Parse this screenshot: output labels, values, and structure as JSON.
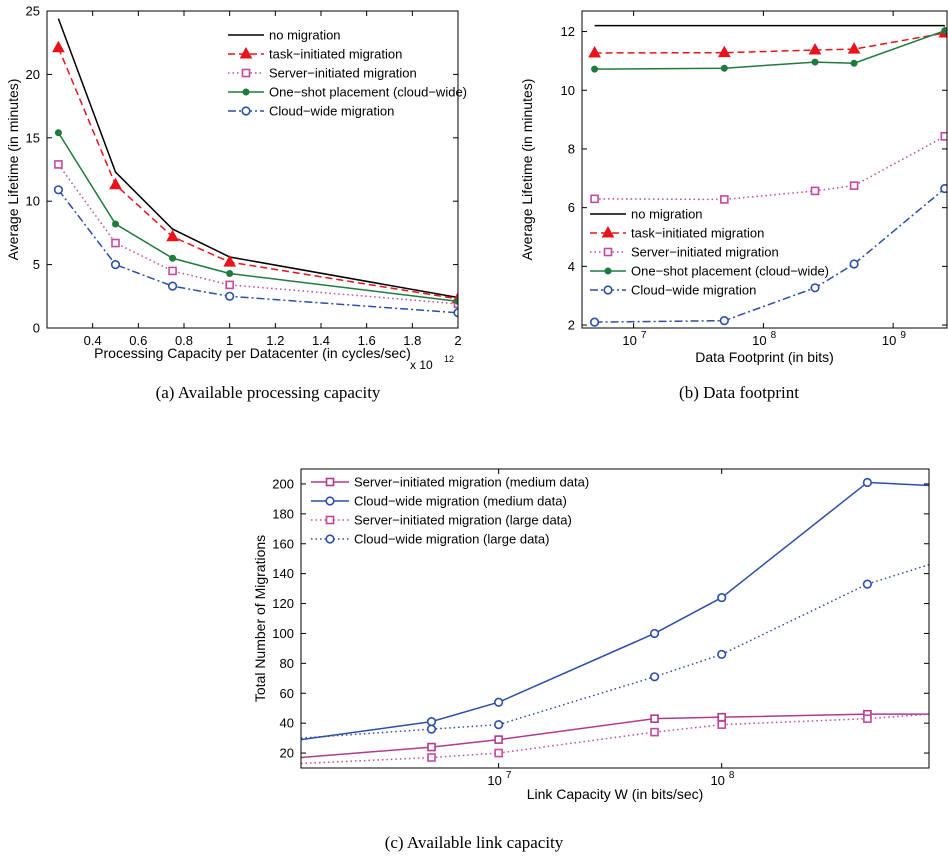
{
  "chart_data": [
    {
      "id": "a",
      "type": "line",
      "caption": "(a)  Available processing capacity",
      "xlabel": "Processing Capacity per Datacenter (in cycles/sec)",
      "ylabel": "Average Lifetime (in minutes)",
      "x_multiplier_label": "x 10",
      "x_multiplier_exp": "12",
      "xscale": "linear",
      "xlim": [
        0.2,
        2.0
      ],
      "ylim": [
        0,
        25
      ],
      "xticks": [
        0.4,
        0.6,
        0.8,
        1,
        1.2,
        1.4,
        1.6,
        1.8,
        2
      ],
      "xtick_labels": [
        "0.4",
        "0.6",
        "0.8",
        "1",
        "1.2",
        "1.4",
        "1.6",
        "1.8",
        "2"
      ],
      "yticks": [
        0,
        5,
        10,
        15,
        20,
        25
      ],
      "ytick_labels": [
        "0",
        "5",
        "10",
        "15",
        "20",
        "25"
      ],
      "legend_position": "top-right",
      "series": [
        {
          "name": "no migration",
          "color": "#000000",
          "dash": "",
          "marker": "none",
          "x": [
            0.25,
            0.5,
            0.75,
            1.0,
            2.0
          ],
          "y": [
            24.4,
            12.3,
            7.8,
            5.6,
            2.4
          ]
        },
        {
          "name": "task−initiated migration",
          "color": "#e8141c",
          "dash": "7,4",
          "marker": "triangle",
          "x": [
            0.25,
            0.5,
            0.75,
            1.0,
            2.0
          ],
          "y": [
            22.1,
            11.3,
            7.2,
            5.2,
            2.3
          ]
        },
        {
          "name": "Server−initiated migration",
          "color": "#c5489f",
          "dash": "1.5,3",
          "marker": "square",
          "x": [
            0.25,
            0.5,
            0.75,
            1.0,
            2.0
          ],
          "y": [
            12.9,
            6.7,
            4.5,
            3.4,
            1.9
          ]
        },
        {
          "name": "One−shot placement (cloud−wide)",
          "color": "#1e7b3c",
          "dash": "",
          "marker": "dot",
          "x": [
            0.25,
            0.5,
            0.75,
            1.0,
            2.0
          ],
          "y": [
            15.4,
            8.2,
            5.5,
            4.3,
            2.1
          ]
        },
        {
          "name": "Cloud−wide migration",
          "color": "#2b4ea8",
          "dash": "8,3,2,3",
          "marker": "circle",
          "x": [
            0.25,
            0.5,
            0.75,
            1.0,
            2.0
          ],
          "y": [
            10.9,
            5.0,
            3.3,
            2.5,
            1.2
          ]
        }
      ]
    },
    {
      "id": "b",
      "type": "line",
      "caption": "(b)  Data footprint",
      "xlabel": "Data Footprint (in bits)",
      "ylabel": "Average Lifetime (in minutes)",
      "xscale": "log",
      "xlim": [
        4000000,
        2600000000
      ],
      "ylim": [
        1.9,
        12.7
      ],
      "xticks": [
        10000000,
        100000000,
        1000000000
      ],
      "xtick_labels": [
        "10",
        "10",
        "10"
      ],
      "xtick_exps": [
        "7",
        "8",
        "9"
      ],
      "yticks": [
        2,
        4,
        6,
        8,
        10,
        12
      ],
      "ytick_labels": [
        "2",
        "4",
        "6",
        "8",
        "10",
        "12"
      ],
      "legend_position": "lower-left",
      "series": [
        {
          "name": "no migration",
          "color": "#000000",
          "dash": "",
          "marker": "none",
          "x": [
            5000000,
            50000000,
            250000000,
            500000000,
            2500000000
          ],
          "y": [
            12.2,
            12.2,
            12.2,
            12.2,
            12.2
          ]
        },
        {
          "name": "task−initiated migration",
          "color": "#e8141c",
          "dash": "7,4",
          "marker": "triangle",
          "x": [
            5000000,
            50000000,
            250000000,
            500000000,
            2500000000
          ],
          "y": [
            11.27,
            11.28,
            11.37,
            11.4,
            11.95
          ]
        },
        {
          "name": "Server−initiated migration",
          "color": "#c5489f",
          "dash": "1.5,3",
          "marker": "square",
          "x": [
            5000000,
            50000000,
            250000000,
            500000000,
            2500000000
          ],
          "y": [
            6.3,
            6.28,
            6.57,
            6.75,
            8.43
          ]
        },
        {
          "name": "One−shot placement (cloud−wide)",
          "color": "#1e7b3c",
          "dash": "",
          "marker": "dot",
          "x": [
            5000000,
            50000000,
            250000000,
            500000000,
            2500000000
          ],
          "y": [
            10.72,
            10.75,
            10.96,
            10.92,
            12.03
          ]
        },
        {
          "name": "Cloud−wide migration",
          "color": "#2b4ea8",
          "dash": "8,3,2,3",
          "marker": "circle",
          "x": [
            5000000,
            50000000,
            250000000,
            500000000,
            2500000000
          ],
          "y": [
            2.1,
            2.15,
            3.27,
            4.08,
            6.65
          ]
        }
      ]
    },
    {
      "id": "c",
      "type": "line",
      "caption": "(c)  Available link capacity",
      "xlabel": "Link Capacity W (in bits/sec)",
      "ylabel": "Total Number of Migrations",
      "xscale": "log",
      "xlim": [
        1300000,
        850000000
      ],
      "ylim": [
        10,
        210
      ],
      "xticks": [
        10000000,
        100000000
      ],
      "xtick_labels": [
        "10",
        "10"
      ],
      "xtick_exps": [
        "7",
        "8"
      ],
      "yticks": [
        20,
        40,
        60,
        80,
        100,
        120,
        140,
        160,
        180,
        200
      ],
      "ytick_labels": [
        "20",
        "40",
        "60",
        "80",
        "100",
        "120",
        "140",
        "160",
        "180",
        "200"
      ],
      "legend_position": "top-left",
      "series": [
        {
          "name": "Server−initiated migration (medium data)",
          "color": "#b03a8d",
          "dash": "",
          "marker": "square",
          "x": [
            1300000,
            5000000,
            10000000,
            50000000,
            100000000,
            450000000,
            850000000
          ],
          "y": [
            17,
            24,
            29,
            43,
            44,
            46,
            46
          ],
          "markers": [
            false,
            true,
            true,
            true,
            true,
            true,
            false
          ]
        },
        {
          "name": "Cloud−wide migration (medium data)",
          "color": "#2b4ea8",
          "dash": "",
          "marker": "circle",
          "x": [
            1300000,
            5000000,
            10000000,
            50000000,
            100000000,
            450000000,
            850000000
          ],
          "y": [
            29,
            41,
            54,
            100,
            124,
            201,
            199
          ],
          "markers": [
            false,
            true,
            true,
            true,
            true,
            true,
            false
          ]
        },
        {
          "name": "Server−initiated migration (large data)",
          "color": "#c5489f",
          "dash": "1.5,3",
          "marker": "square",
          "x": [
            1300000,
            5000000,
            10000000,
            50000000,
            100000000,
            450000000,
            850000000
          ],
          "y": [
            13,
            17,
            20,
            34,
            39,
            43,
            46
          ],
          "markers": [
            false,
            true,
            true,
            true,
            true,
            true,
            false
          ]
        },
        {
          "name": "Cloud−wide migration (large data)",
          "color": "#2b4ea8",
          "dash": "1.5,3",
          "marker": "circle",
          "x": [
            1300000,
            5000000,
            10000000,
            50000000,
            100000000,
            450000000,
            850000000
          ],
          "y": [
            30,
            36,
            39,
            71,
            86,
            133,
            146
          ],
          "markers": [
            false,
            true,
            true,
            true,
            true,
            true,
            false
          ]
        }
      ]
    }
  ]
}
